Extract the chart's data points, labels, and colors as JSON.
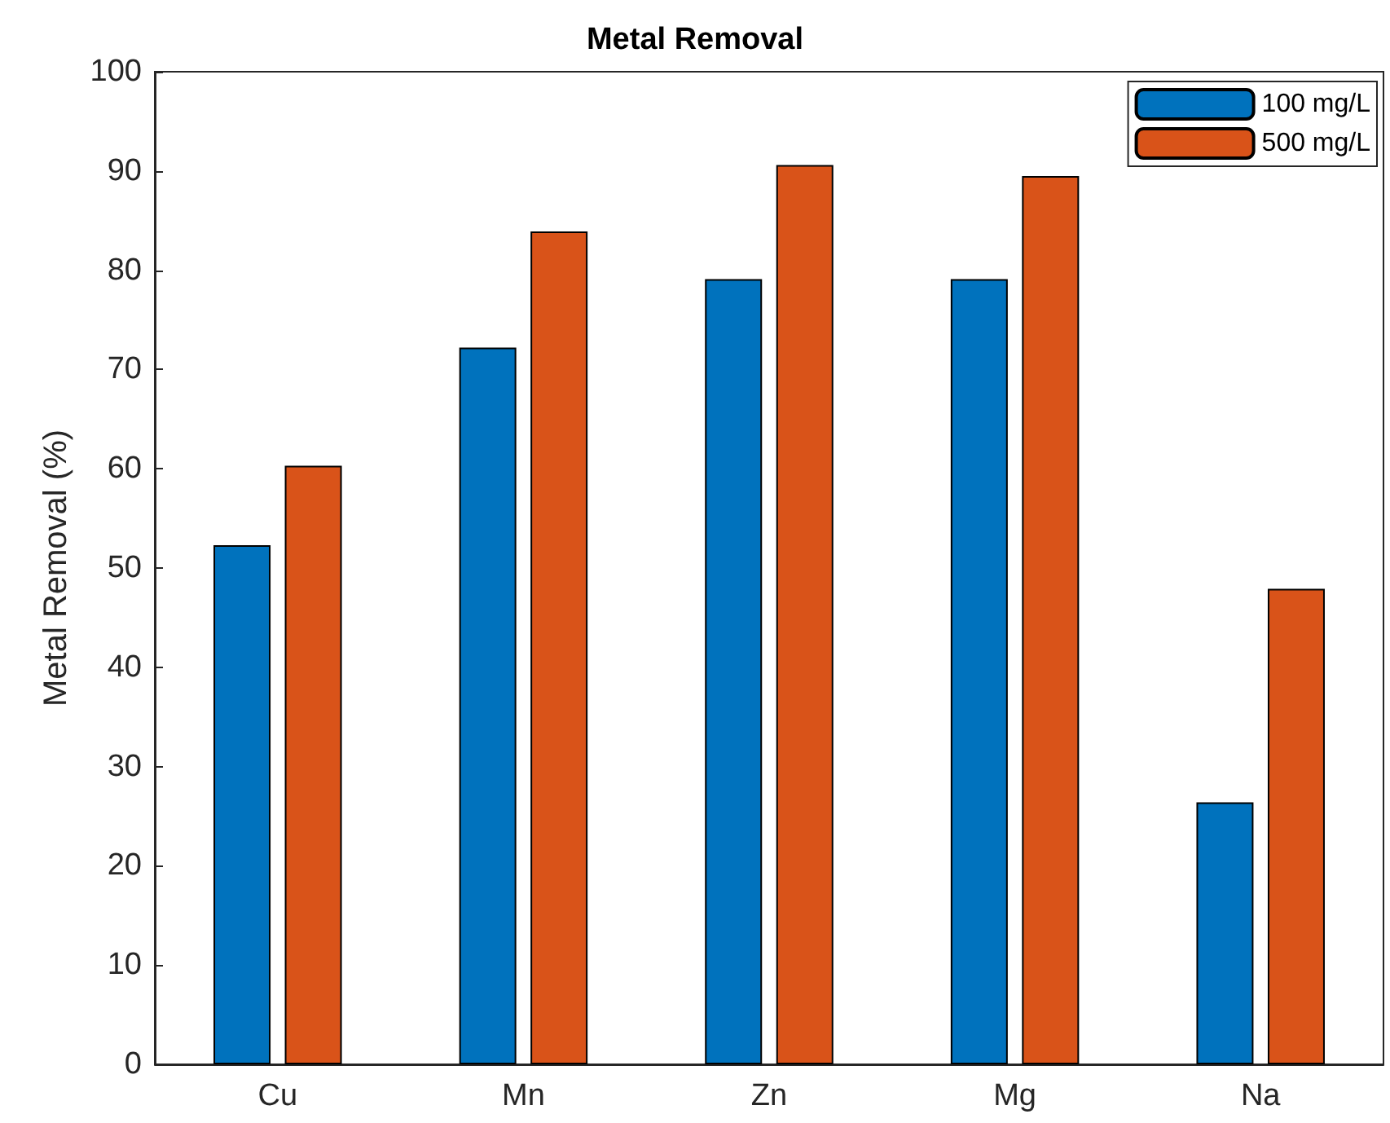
{
  "chart_data": {
    "type": "bar",
    "title": "Metal Removal",
    "ylabel": "Metal Removal (%)",
    "categories": [
      "Cu",
      "Mn",
      "Zn",
      "Mg",
      "Na"
    ],
    "series": [
      {
        "name": "100 mg/L",
        "color": "#0072bd",
        "values": [
          52.3,
          72.2,
          79.1,
          79.1,
          26.4
        ]
      },
      {
        "name": "500 mg/L",
        "color": "#d95319",
        "values": [
          60.3,
          83.9,
          90.6,
          89.5,
          47.9
        ]
      }
    ],
    "ylim": [
      0,
      100
    ],
    "yticks": [
      0,
      10,
      20,
      30,
      40,
      50,
      60,
      70,
      80,
      90,
      100
    ],
    "grid": false,
    "legend": "top right"
  }
}
